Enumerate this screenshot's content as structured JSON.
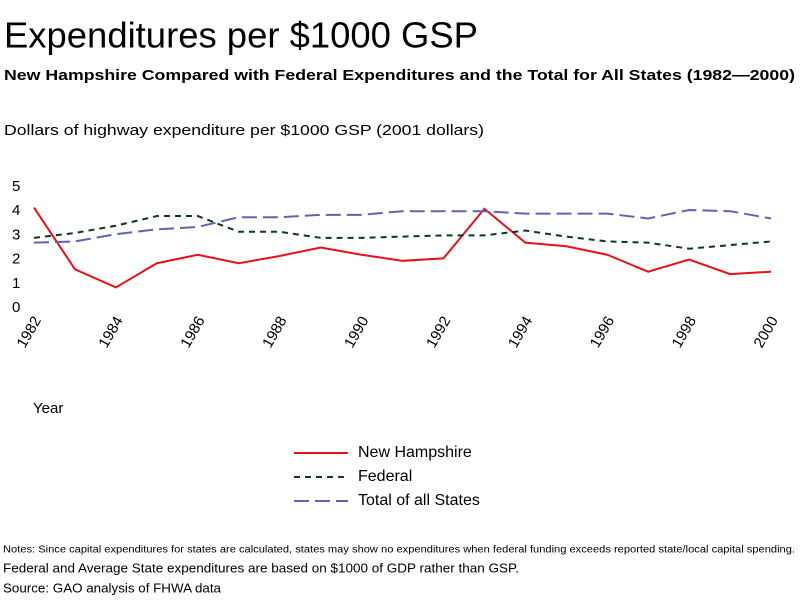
{
  "chart_data": {
    "type": "line",
    "title": "Expenditures per $1000 GSP",
    "subtitle": "New Hampshire Compared with Federal Expenditures and the Total for All States (1982—2000)",
    "y_label": "Dollars of highway expenditure per $1000 GSP (2001 dollars)",
    "x_label": "Year",
    "x": [
      1982,
      1983,
      1984,
      1985,
      1986,
      1987,
      1988,
      1989,
      1990,
      1991,
      1992,
      1993,
      1994,
      1995,
      1996,
      1997,
      1998,
      1999,
      2000
    ],
    "series": [
      {
        "name": "New Hampshire",
        "color": "#e8101a",
        "line_style": "solid",
        "values": [
          4.15,
          1.6,
          0.85,
          1.85,
          2.2,
          1.85,
          2.15,
          2.5,
          2.2,
          1.95,
          2.05,
          4.1,
          2.7,
          2.55,
          2.2,
          1.5,
          2.0,
          1.4,
          1.5
        ]
      },
      {
        "name": "Federal",
        "color": "#0b3a1e",
        "line_style": "dashed",
        "values": [
          2.9,
          3.1,
          3.4,
          3.8,
          3.8,
          3.15,
          3.15,
          2.9,
          2.9,
          2.95,
          3.0,
          3.0,
          3.2,
          2.95,
          2.75,
          2.7,
          2.45,
          2.6,
          2.75
        ]
      },
      {
        "name": "Total of all States",
        "color": "#6262b4",
        "line_style": "long-dashed",
        "values": [
          2.7,
          2.75,
          3.05,
          3.25,
          3.35,
          3.75,
          3.75,
          3.85,
          3.85,
          4.0,
          4.0,
          4.0,
          3.9,
          3.9,
          3.9,
          3.7,
          4.05,
          4.0,
          3.7
        ]
      }
    ],
    "xlim": [
      1982,
      2000
    ],
    "xticks": [
      1982,
      1984,
      1986,
      1988,
      1990,
      1992,
      1994,
      1996,
      1998,
      2000
    ],
    "ylim": [
      0,
      5
    ],
    "yticks": [
      0,
      1,
      2,
      3,
      4,
      5
    ],
    "grid": false,
    "legend": "bottom",
    "notes": [
      "Notes: Since capital expenditures for states are calculated, states may show no expenditures when federal funding exceeds reported state/local capital spending.",
      "Federal and Average State expenditures are based on $1000 of GDP rather than GSP.",
      "Source: GAO analysis of FHWA data"
    ]
  }
}
